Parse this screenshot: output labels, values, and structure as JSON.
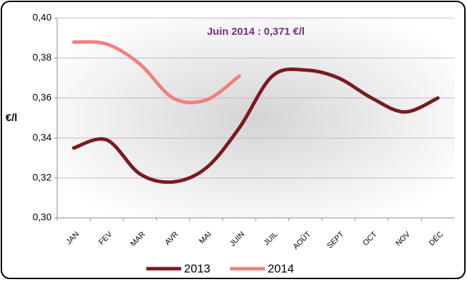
{
  "chart_data": {
    "type": "line",
    "annotation": "Juin 2014 : 0,371 €/l",
    "y_label": "€/l",
    "categories": [
      "JAN",
      "FEV",
      "MAR",
      "AVR",
      "MAI",
      "JUIN",
      "JUIL",
      "AOÛT",
      "SEPT",
      "OCT",
      "NOV",
      "DÉC"
    ],
    "series": [
      {
        "name": "2013",
        "color": "#7b1a1f",
        "values": [
          0.335,
          0.339,
          0.322,
          0.318,
          0.325,
          0.345,
          0.371,
          0.374,
          0.37,
          0.36,
          0.353,
          0.36
        ]
      },
      {
        "name": "2014",
        "color": "#f08080",
        "values": [
          0.388,
          0.387,
          0.377,
          0.36,
          0.359,
          0.371,
          null,
          null,
          null,
          null,
          null,
          null
        ]
      }
    ],
    "ylim": [
      0.3,
      0.4
    ],
    "yticks": [
      {
        "value": 0.3,
        "label": "0,30"
      },
      {
        "value": 0.32,
        "label": "0,32"
      },
      {
        "value": 0.34,
        "label": "0,34"
      },
      {
        "value": 0.36,
        "label": "0,36"
      },
      {
        "value": 0.38,
        "label": "0,38"
      },
      {
        "value": 0.4,
        "label": "0,40"
      }
    ],
    "grid": true
  }
}
